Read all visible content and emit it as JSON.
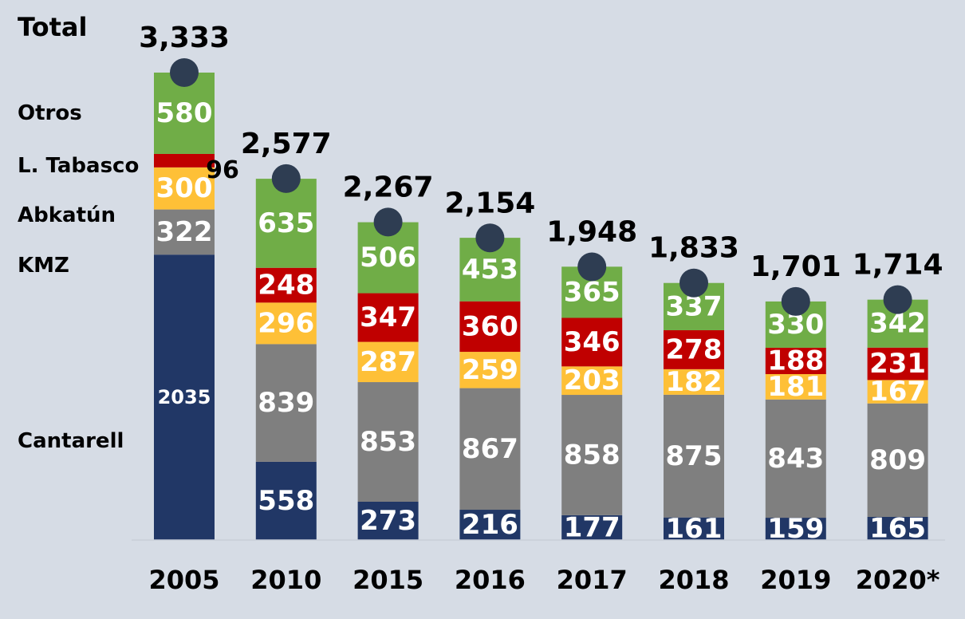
{
  "colors": {
    "background": "#d6dce5",
    "Cantarell": "#213766",
    "KMZ": "#7f7f7f",
    "Abkatún": "#fec037",
    "L. Tabasco": "#c00000",
    "Otros": "#70ad47",
    "marker": "#2e3d52",
    "label_light": "#ffffff",
    "label_dark": "#000000"
  },
  "chart_data": {
    "type": "bar",
    "stacked": true,
    "categories": [
      "2005",
      "2010",
      "2015",
      "2016",
      "2017",
      "2018",
      "2019",
      "2020*"
    ],
    "series": [
      {
        "name": "Cantarell",
        "values": [
          2035,
          558,
          273,
          216,
          177,
          161,
          159,
          165
        ]
      },
      {
        "name": "KMZ",
        "values": [
          322,
          839,
          853,
          867,
          858,
          875,
          843,
          809
        ]
      },
      {
        "name": "Abkatún",
        "values": [
          300,
          296,
          287,
          259,
          203,
          182,
          181,
          167
        ]
      },
      {
        "name": "L. Tabasco",
        "values": [
          96,
          248,
          347,
          360,
          346,
          278,
          188,
          231
        ]
      },
      {
        "name": "Otros",
        "values": [
          580,
          635,
          506,
          453,
          365,
          337,
          330,
          342
        ]
      }
    ],
    "totals_label": "Total",
    "totals": [
      3333,
      2577,
      2267,
      2154,
      1948,
      1833,
      1701,
      1714
    ],
    "total_labels": [
      "3,333",
      "2,577",
      "2,267",
      "2,154",
      "1,948",
      "1,833",
      "1,701",
      "1,714"
    ],
    "legend_labels": [
      "Total",
      "Otros",
      "L. Tabasco",
      "Abkatún",
      "KMZ",
      "Cantarell"
    ],
    "legend_position": "left",
    "ylim": [
      0,
      3333
    ],
    "grid": false
  }
}
